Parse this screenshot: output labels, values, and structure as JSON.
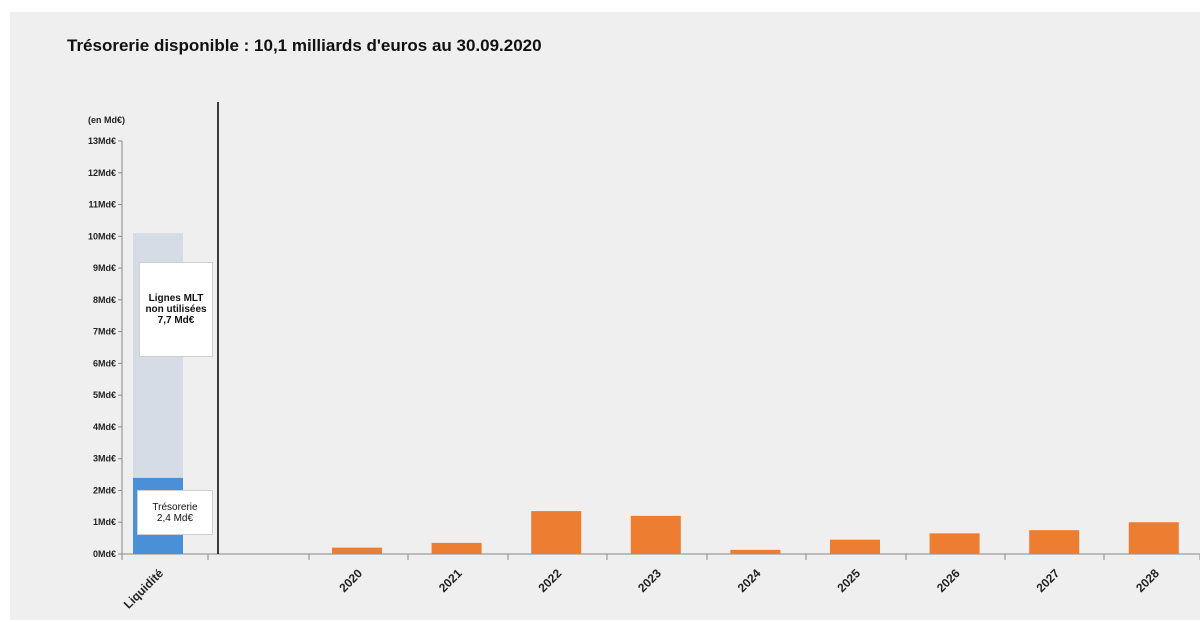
{
  "page": {
    "title": "Trésorerie disponible : 10,1 milliards d'euros au 30.09.2020"
  },
  "chart_data": {
    "type": "bar",
    "title": "Trésorerie disponible : 10,1 milliards d'euros au 30.09.2020",
    "unit_label": "(en Md€)",
    "y_ticks": [
      "0Md€",
      "1Md€",
      "2Md€",
      "3Md€",
      "4Md€",
      "5Md€",
      "6Md€",
      "7Md€",
      "8Md€",
      "9Md€",
      "10Md€",
      "11Md€",
      "12Md€",
      "13Md€"
    ],
    "ylim": [
      0,
      13
    ],
    "grid": false,
    "liquidity": {
      "category": "Liquidité",
      "stack": [
        {
          "name": "Trésorerie",
          "value": 2.4,
          "color": "#4a90d9",
          "label_lines": [
            "Trésorerie",
            "2,4 Md€"
          ]
        },
        {
          "name": "Lignes MLT non utilisées",
          "value": 7.7,
          "color": "#d6dce5",
          "label_lines": [
            "Lignes MLT",
            "non utilisées",
            "7,7 Md€"
          ]
        }
      ]
    },
    "categories": [
      "2020",
      "2021",
      "2022",
      "2023",
      "2024",
      "2025",
      "2026",
      "2027",
      "2028"
    ],
    "values": [
      0.2,
      0.35,
      1.35,
      1.2,
      0.13,
      0.45,
      0.65,
      0.75,
      1.0
    ],
    "bar_color": "#ed7d31"
  }
}
